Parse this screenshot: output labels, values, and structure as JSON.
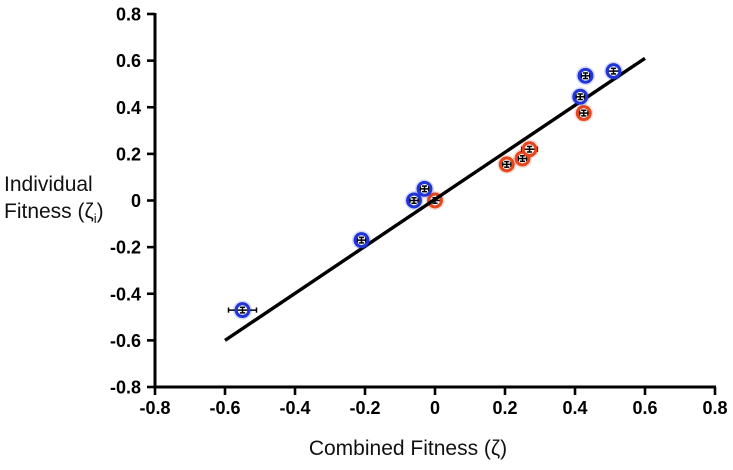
{
  "figure": {
    "background": "#ffffff"
  },
  "chart_data": {
    "type": "scatter",
    "title": "",
    "xlabel": "Combined Fitness (ζ)",
    "ylabel": "Individual Fitness (ζi)",
    "ylabel_line1": "Individual",
    "ylabel_line2_pre": "Fitness (ζ",
    "ylabel_line2_sub": "i",
    "ylabel_line2_post": ")",
    "xlim": [
      -0.8,
      0.8
    ],
    "ylim": [
      -0.8,
      0.8
    ],
    "grid": false,
    "legend": "none",
    "axis_color": "#000000",
    "tick_label_color": "#000000",
    "xticks": {
      "values": [
        -0.8,
        -0.6,
        -0.4,
        -0.2,
        0,
        0.2,
        0.4,
        0.6,
        0.8
      ],
      "labels": [
        "-0.8",
        "-0.6",
        "-0.4",
        "-0.2",
        "0",
        "0.2",
        "0.4",
        "0.6",
        "0.8"
      ]
    },
    "yticks": {
      "values": [
        -0.8,
        -0.6,
        -0.4,
        -0.2,
        0,
        0.2,
        0.4,
        0.6,
        0.8
      ],
      "labels": [
        "-0.8",
        "-0.6",
        "-0.4",
        "-0.2",
        "0",
        "0.2",
        "0.4",
        "0.6",
        "0.8"
      ]
    },
    "series": [
      {
        "name": "group-blue",
        "marker": "open-circle",
        "color": "#2134d6",
        "points": [
          {
            "x": -0.55,
            "y": -0.47,
            "xerr": 0.04,
            "yerr": 0.012
          },
          {
            "x": -0.21,
            "y": -0.17,
            "xerr": 0.012,
            "yerr": 0.012
          },
          {
            "x": -0.06,
            "y": 0.0,
            "xerr": 0.012,
            "yerr": 0.012
          },
          {
            "x": -0.03,
            "y": 0.05,
            "xerr": 0.012,
            "yerr": 0.012
          },
          {
            "x": 0.415,
            "y": 0.445,
            "xerr": 0.012,
            "yerr": 0.012
          },
          {
            "x": 0.43,
            "y": 0.535,
            "xerr": 0.012,
            "yerr": 0.012
          },
          {
            "x": 0.51,
            "y": 0.555,
            "xerr": 0.018,
            "yerr": 0.012
          }
        ]
      },
      {
        "name": "group-red",
        "marker": "open-circle",
        "color": "#e5461d",
        "points": [
          {
            "x": 0.0,
            "y": 0.0,
            "xerr": 0.018,
            "yerr": 0.012
          },
          {
            "x": 0.205,
            "y": 0.155,
            "xerr": 0.012,
            "yerr": 0.012
          },
          {
            "x": 0.25,
            "y": 0.18,
            "xerr": 0.012,
            "yerr": 0.012
          },
          {
            "x": 0.27,
            "y": 0.22,
            "xerr": 0.022,
            "yerr": 0.012
          },
          {
            "x": 0.425,
            "y": 0.375,
            "xerr": 0.012,
            "yerr": 0.012
          }
        ]
      }
    ],
    "fit_line": {
      "x1": -0.6,
      "y1": -0.6,
      "x2": 0.6,
      "y2": 0.61,
      "color": "#000000"
    }
  }
}
